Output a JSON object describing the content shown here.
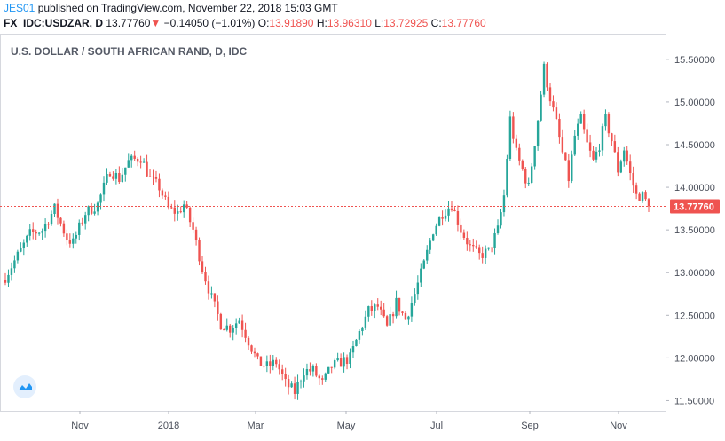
{
  "header": {
    "author": "JES01",
    "published": " published on TradingView.com, November 22, 2018 15:03 GMT",
    "symbol": "FX_IDC:USDZAR, D",
    "last": "13.77760",
    "change_arrow": "▼",
    "change": "−0.14050 (−1.01%)",
    "o_label": "O:",
    "o_value": "13.91890",
    "h_label": "H:",
    "h_value": "13.96310",
    "l_label": "L:",
    "l_value": "13.72925",
    "c_label": "C:",
    "c_value": "13.77760"
  },
  "colors": {
    "up": "#26a69a",
    "down": "#ef5350",
    "last_line": "#ef5350"
  },
  "chart_data": {
    "type": "candlestick",
    "title": "U.S. DOLLAR / SOUTH AFRICAN RAND, D, IDC",
    "ylim": [
      11.38,
      15.8
    ],
    "y_ticks": [
      11.5,
      12.0,
      12.5,
      13.0,
      13.5,
      14.0,
      14.5,
      15.0,
      15.5
    ],
    "y_tick_labels": [
      "11.50000",
      "12.00000",
      "12.50000",
      "13.00000",
      "13.50000",
      "14.00000",
      "14.50000",
      "15.00000",
      "15.50000"
    ],
    "x_tick_labels": [
      "Nov",
      "2018",
      "Mar",
      "May",
      "Jul",
      "Sep",
      "Nov"
    ],
    "last_price": 13.7776,
    "last_price_label": "13.77760",
    "close_path": [
      [
        0,
        12.95
      ],
      [
        4,
        13.2
      ],
      [
        8,
        13.45
      ],
      [
        12,
        13.5
      ],
      [
        16,
        13.75
      ],
      [
        20,
        13.4
      ],
      [
        22,
        13.35
      ],
      [
        26,
        13.7
      ],
      [
        30,
        13.8
      ],
      [
        34,
        14.2
      ],
      [
        37,
        14.1
      ],
      [
        40,
        14.3
      ],
      [
        44,
        14.35
      ],
      [
        47,
        14.1
      ],
      [
        50,
        14.0
      ],
      [
        53,
        13.75
      ],
      [
        56,
        13.7
      ],
      [
        58,
        13.8
      ],
      [
        61,
        13.5
      ],
      [
        64,
        13.05
      ],
      [
        67,
        12.7
      ],
      [
        70,
        12.4
      ],
      [
        73,
        12.35
      ],
      [
        76,
        12.45
      ],
      [
        79,
        12.2
      ],
      [
        82,
        11.95
      ],
      [
        85,
        11.9
      ],
      [
        88,
        11.95
      ],
      [
        91,
        11.7
      ],
      [
        94,
        11.6
      ],
      [
        97,
        11.85
      ],
      [
        100,
        11.85
      ],
      [
        103,
        11.7
      ],
      [
        106,
        11.9
      ],
      [
        109,
        11.95
      ],
      [
        112,
        12.0
      ],
      [
        115,
        12.3
      ],
      [
        118,
        12.55
      ],
      [
        121,
        12.6
      ],
      [
        124,
        12.35
      ],
      [
        127,
        12.65
      ],
      [
        130,
        12.45
      ],
      [
        133,
        12.75
      ],
      [
        136,
        13.1
      ],
      [
        139,
        13.5
      ],
      [
        142,
        13.7
      ],
      [
        145,
        13.8
      ],
      [
        148,
        13.5
      ],
      [
        151,
        13.3
      ],
      [
        154,
        13.2
      ],
      [
        157,
        13.25
      ],
      [
        160,
        13.5
      ],
      [
        162,
        13.9
      ],
      [
        164,
        14.8
      ],
      [
        166,
        14.4
      ],
      [
        168,
        14.2
      ],
      [
        170,
        14.0
      ],
      [
        173,
        14.8
      ],
      [
        175,
        15.4
      ],
      [
        177,
        15.05
      ],
      [
        179,
        14.75
      ],
      [
        181,
        14.4
      ],
      [
        183,
        14.1
      ],
      [
        185,
        14.6
      ],
      [
        187,
        14.8
      ],
      [
        189,
        14.5
      ],
      [
        191,
        14.3
      ],
      [
        193,
        14.5
      ],
      [
        195,
        14.8
      ],
      [
        197,
        14.55
      ],
      [
        199,
        14.2
      ],
      [
        201,
        14.45
      ],
      [
        203,
        14.15
      ],
      [
        205,
        13.9
      ],
      [
        207,
        13.9
      ],
      [
        209,
        13.78
      ]
    ]
  }
}
